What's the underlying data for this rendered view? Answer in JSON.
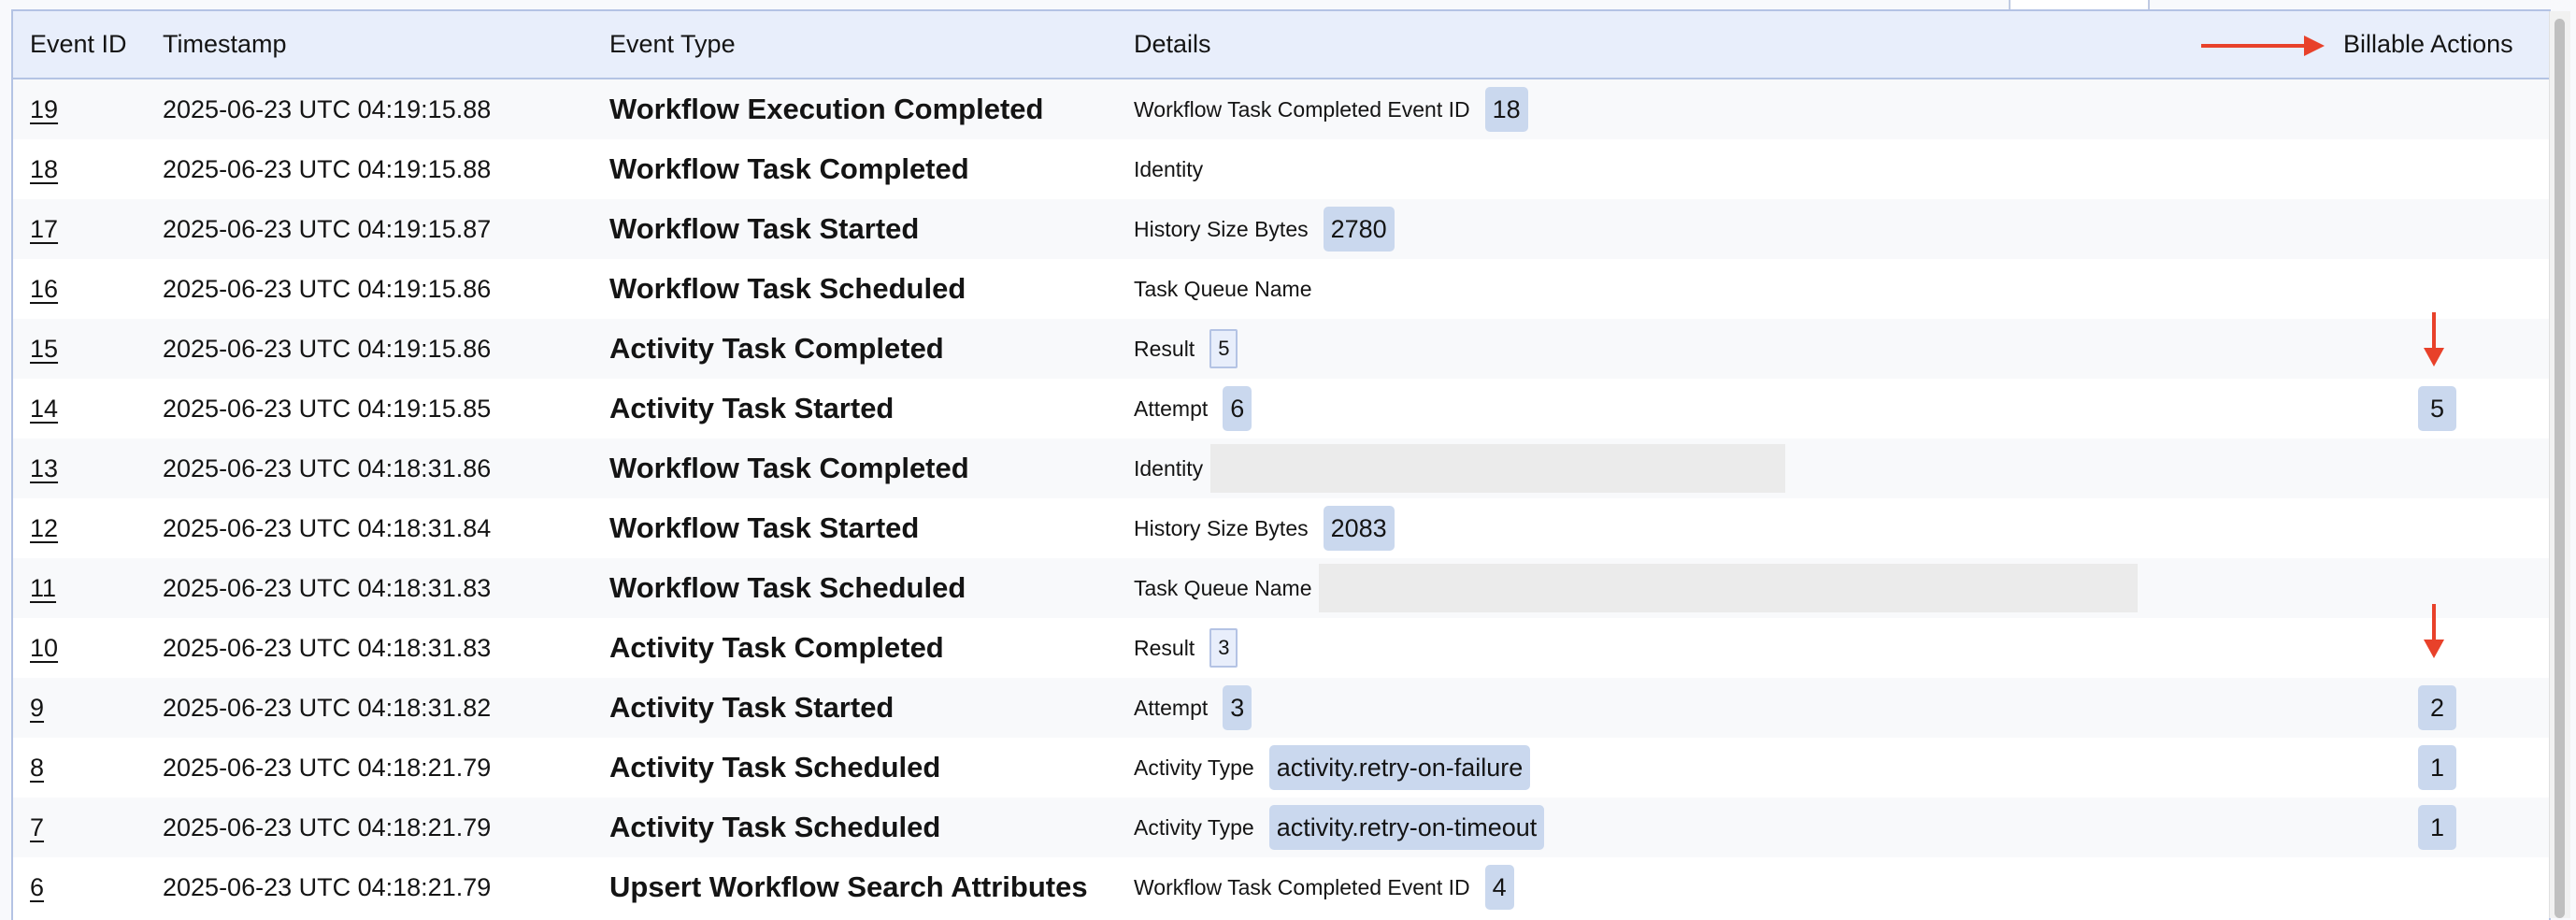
{
  "columns": {
    "event_id": "Event ID",
    "timestamp": "Timestamp",
    "event_type": "Event Type",
    "details": "Details",
    "billable": "Billable Actions"
  },
  "colors": {
    "annotation_arrow": "#e8412a",
    "header_bg": "#e8eefb",
    "badge_bg": "#cad8ee",
    "border": "#b4c3e4"
  },
  "rows": [
    {
      "id": "19",
      "ts": "2025-06-23 UTC 04:19:15.88",
      "type": "Workflow Execution Completed",
      "label": "Workflow Task Completed Event ID",
      "value": "18",
      "style": "badge",
      "billable": ""
    },
    {
      "id": "18",
      "ts": "2025-06-23 UTC 04:19:15.88",
      "type": "Workflow Task Completed",
      "label": "Identity",
      "value": "",
      "style": "none",
      "billable": ""
    },
    {
      "id": "17",
      "ts": "2025-06-23 UTC 04:19:15.87",
      "type": "Workflow Task Started",
      "label": "History Size Bytes",
      "value": "2780",
      "style": "badge",
      "billable": ""
    },
    {
      "id": "16",
      "ts": "2025-06-23 UTC 04:19:15.86",
      "type": "Workflow Task Scheduled",
      "label": "Task Queue Name",
      "value": "",
      "style": "none",
      "billable": ""
    },
    {
      "id": "15",
      "ts": "2025-06-23 UTC 04:19:15.86",
      "type": "Activity Task Completed",
      "label": "Result",
      "value": "5",
      "style": "boxed",
      "billable": ""
    },
    {
      "id": "14",
      "ts": "2025-06-23 UTC 04:19:15.85",
      "type": "Activity Task Started",
      "label": "Attempt",
      "value": "6",
      "style": "badge",
      "billable": "5"
    },
    {
      "id": "13",
      "ts": "2025-06-23 UTC 04:18:31.86",
      "type": "Workflow Task Completed",
      "label": "Identity",
      "value": "",
      "style": "redacted",
      "billable": ""
    },
    {
      "id": "12",
      "ts": "2025-06-23 UTC 04:18:31.84",
      "type": "Workflow Task Started",
      "label": "History Size Bytes",
      "value": "2083",
      "style": "badge",
      "billable": ""
    },
    {
      "id": "11",
      "ts": "2025-06-23 UTC 04:18:31.83",
      "type": "Workflow Task Scheduled",
      "label": "Task Queue Name",
      "value": "",
      "style": "redacted",
      "billable": ""
    },
    {
      "id": "10",
      "ts": "2025-06-23 UTC 04:18:31.83",
      "type": "Activity Task Completed",
      "label": "Result",
      "value": "3",
      "style": "boxed",
      "billable": ""
    },
    {
      "id": "9",
      "ts": "2025-06-23 UTC 04:18:31.82",
      "type": "Activity Task Started",
      "label": "Attempt",
      "value": "3",
      "style": "badge",
      "billable": "2"
    },
    {
      "id": "8",
      "ts": "2025-06-23 UTC 04:18:21.79",
      "type": "Activity Task Scheduled",
      "label": "Activity Type",
      "value": "activity.retry-on-failure",
      "style": "badge",
      "billable": "1"
    },
    {
      "id": "7",
      "ts": "2025-06-23 UTC 04:18:21.79",
      "type": "Activity Task Scheduled",
      "label": "Activity Type",
      "value": "activity.retry-on-timeout",
      "style": "badge",
      "billable": "1"
    },
    {
      "id": "6",
      "ts": "2025-06-23 UTC 04:18:21.79",
      "type": "Upsert Workflow Search Attributes",
      "label": "Workflow Task Completed Event ID",
      "value": "4",
      "style": "badge",
      "billable": ""
    }
  ]
}
